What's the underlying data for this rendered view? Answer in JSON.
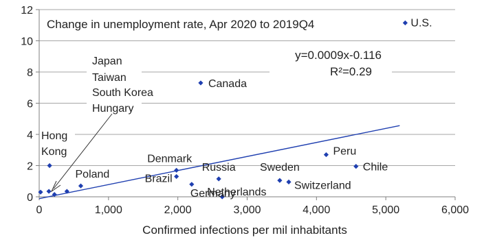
{
  "chart_data": {
    "type": "scatter",
    "title": "Change in unemployment rate, Apr 2020 to 2019Q4",
    "xlabel": "Confirmed infections per mil inhabitants",
    "ylabel": "",
    "xlim": [
      0,
      6000
    ],
    "ylim": [
      0,
      12
    ],
    "xticks": [
      0,
      1000,
      2000,
      3000,
      4000,
      5000,
      6000
    ],
    "xtick_labels": [
      "0",
      "1,000",
      "2,000",
      "3,000",
      "4,000",
      "5,000",
      "6,000"
    ],
    "yticks": [
      0,
      2,
      4,
      6,
      8,
      10,
      12
    ],
    "ytick_labels": [
      "0",
      "2",
      "4",
      "6",
      "8",
      "10",
      "12"
    ],
    "grid": "horizontal",
    "marker_color": "#1f3fb0",
    "trendline_color": "#1f3fb0",
    "trendline": {
      "equation": "y=0.0009x-0.116",
      "r2": "R²=0.29",
      "slope": 0.0009,
      "intercept": -0.116,
      "x_range": [
        0,
        5200
      ]
    },
    "points": [
      {
        "label": "U.S.",
        "x": 5280,
        "y": 11.15
      },
      {
        "label": "Canada",
        "x": 2330,
        "y": 7.3
      },
      {
        "label": "Peru",
        "x": 4140,
        "y": 2.7
      },
      {
        "label": "Chile",
        "x": 4570,
        "y": 1.95
      },
      {
        "label": "Hong Kong",
        "x": 150,
        "y": 2.0
      },
      {
        "label": "Denmark",
        "x": 1980,
        "y": 1.7
      },
      {
        "label": "Brazil",
        "x": 1980,
        "y": 1.3
      },
      {
        "label": "Russia",
        "x": 2590,
        "y": 1.15
      },
      {
        "label": "Sweden",
        "x": 3470,
        "y": 1.05
      },
      {
        "label": "Switzerland",
        "x": 3600,
        "y": 0.95
      },
      {
        "label": "Germany",
        "x": 2200,
        "y": 0.8
      },
      {
        "label": "Poland",
        "x": 600,
        "y": 0.7
      },
      {
        "label": "Netherlands",
        "x": 2640,
        "y": 0.0
      },
      {
        "label": "",
        "x": 20,
        "y": 0.3
      },
      {
        "label": "",
        "x": 140,
        "y": 0.35
      },
      {
        "label": "",
        "x": 220,
        "y": 0.15
      },
      {
        "label": "",
        "x": 400,
        "y": 0.35
      }
    ],
    "annotations": [
      {
        "name": "cluster-label-japan",
        "text": "Japan"
      },
      {
        "name": "cluster-label-taiwan",
        "text": "Taiwan"
      },
      {
        "name": "cluster-label-south-korea",
        "text": "South Korea"
      },
      {
        "name": "cluster-label-hungary",
        "text": "Hungary"
      },
      {
        "name": "label-hong",
        "text": "Hong"
      },
      {
        "name": "label-kong",
        "text": "Kong"
      }
    ]
  }
}
